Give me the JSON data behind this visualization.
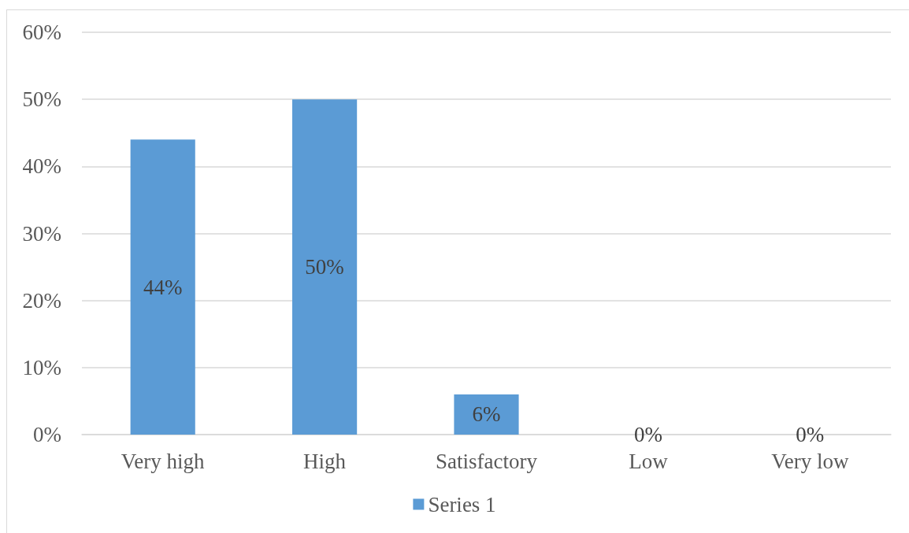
{
  "chart_data": {
    "type": "bar",
    "categories": [
      "Very high",
      "High",
      "Satisfactory",
      "Low",
      "Very low"
    ],
    "series": [
      {
        "name": "Series 1",
        "color": "#5b9bd5",
        "values": [
          44,
          50,
          6,
          0,
          0
        ],
        "value_labels": [
          "44%",
          "50%",
          "6%",
          "0%",
          "0%"
        ]
      }
    ],
    "ylim": [
      0,
      60
    ],
    "yticks": [
      {
        "value": 0,
        "label": "0%"
      },
      {
        "value": 10,
        "label": "10%"
      },
      {
        "value": 20,
        "label": "20%"
      },
      {
        "value": 30,
        "label": "30%"
      },
      {
        "value": 40,
        "label": "40%"
      },
      {
        "value": 50,
        "label": "50%"
      },
      {
        "value": 60,
        "label": "60%"
      }
    ],
    "grid": "y",
    "legend": "bottom"
  }
}
